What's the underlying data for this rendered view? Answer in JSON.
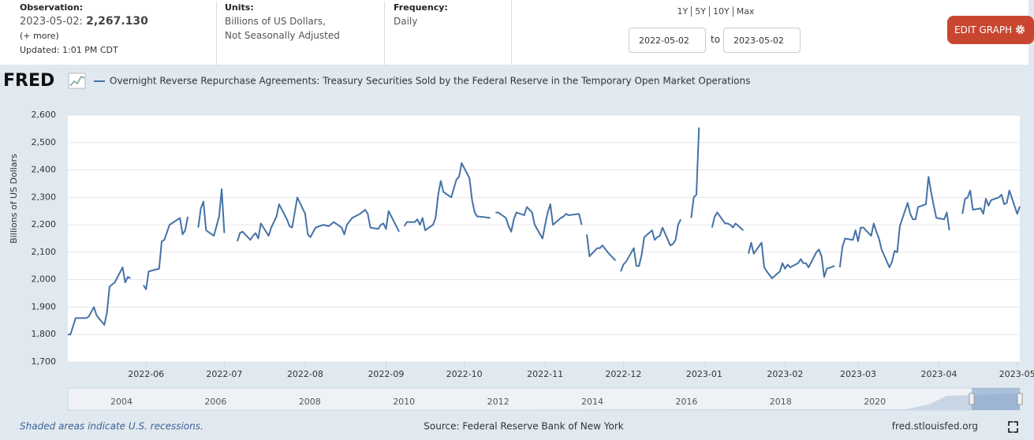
{
  "header": {
    "observation_label": "Observation:",
    "observation_date": "2023-05-02:",
    "observation_value": "2,267.130",
    "more": "(+ more)",
    "updated": "Updated: 1:01 PM CDT",
    "units_label": "Units:",
    "units": [
      "Billions of US Dollars,",
      "Not Seasonally Adjusted"
    ],
    "frequency_label": "Frequency:",
    "frequency": "Daily",
    "ranges": [
      "1Y",
      "5Y",
      "10Y",
      "Max"
    ],
    "range_start": "2022-05-02",
    "range_to": "to",
    "range_end": "2023-05-02",
    "edit_button": "EDIT GRAPH"
  },
  "logo": "FRED",
  "chart_data": {
    "type": "line",
    "ylabel": "Billions of US Dollars",
    "grid": true,
    "xlim": [
      "2022-05-02",
      "2023-05-02"
    ],
    "xticks": [
      {
        "value": "2022-06-01",
        "label": "2022-06"
      },
      {
        "value": "2022-07-01",
        "label": "2022-07"
      },
      {
        "value": "2022-08-01",
        "label": "2022-08"
      },
      {
        "value": "2022-09-01",
        "label": "2022-09"
      },
      {
        "value": "2022-10-01",
        "label": "2022-10"
      },
      {
        "value": "2022-11-01",
        "label": "2022-11"
      },
      {
        "value": "2022-12-01",
        "label": "2022-12"
      },
      {
        "value": "2023-01-01",
        "label": "2023-01"
      },
      {
        "value": "2023-02-01",
        "label": "2023-02"
      },
      {
        "value": "2023-03-01",
        "label": "2023-03"
      },
      {
        "value": "2023-04-01",
        "label": "2023-04"
      },
      {
        "value": "2023-05-01",
        "label": "2023-05"
      }
    ],
    "ylim": [
      1700,
      2600
    ],
    "yticks": [
      {
        "value": 1700,
        "label": "1,700"
      },
      {
        "value": 1800,
        "label": "1,800"
      },
      {
        "value": 1900,
        "label": "1,900"
      },
      {
        "value": 2000,
        "label": "2,000"
      },
      {
        "value": 2100,
        "label": "2,100"
      },
      {
        "value": 2200,
        "label": "2,200"
      },
      {
        "value": 2300,
        "label": "2,300"
      },
      {
        "value": 2400,
        "label": "2,400"
      },
      {
        "value": 2500,
        "label": "2,500"
      },
      {
        "value": 2600,
        "label": "2,600"
      }
    ],
    "x": [
      "2022-05-02",
      "2022-05-03",
      "2022-05-04",
      "2022-05-05",
      "2022-05-09",
      "2022-05-10",
      "2022-05-12",
      "2022-05-13",
      "2022-05-16",
      "2022-05-17",
      "2022-05-18",
      "2022-05-20",
      "2022-05-23",
      "2022-05-24",
      "2022-05-25",
      "2022-05-26",
      "2022-05-27",
      "2022-05-31",
      "2022-06-01",
      "2022-06-02",
      "2022-06-06",
      "2022-06-07",
      "2022-06-08",
      "2022-06-10",
      "2022-06-14",
      "2022-06-15",
      "2022-06-16",
      "2022-06-17",
      "2022-06-20",
      "2022-06-21",
      "2022-06-22",
      "2022-06-23",
      "2022-06-24",
      "2022-06-27",
      "2022-06-29",
      "2022-06-30",
      "2022-07-01",
      "2022-07-05",
      "2022-07-06",
      "2022-07-07",
      "2022-07-08",
      "2022-07-11",
      "2022-07-12",
      "2022-07-13",
      "2022-07-14",
      "2022-07-15",
      "2022-07-18",
      "2022-07-19",
      "2022-07-21",
      "2022-07-22",
      "2022-07-25",
      "2022-07-26",
      "2022-07-27",
      "2022-07-29",
      "2022-08-01",
      "2022-08-02",
      "2022-08-03",
      "2022-08-05",
      "2022-08-08",
      "2022-08-10",
      "2022-08-12",
      "2022-08-15",
      "2022-08-16",
      "2022-08-17",
      "2022-08-19",
      "2022-08-22",
      "2022-08-24",
      "2022-08-25",
      "2022-08-26",
      "2022-08-29",
      "2022-08-30",
      "2022-08-31",
      "2022-09-01",
      "2022-09-02",
      "2022-09-06",
      "2022-09-07",
      "2022-09-08",
      "2022-09-09",
      "2022-09-12",
      "2022-09-13",
      "2022-09-14",
      "2022-09-15",
      "2022-09-16",
      "2022-09-19",
      "2022-09-20",
      "2022-09-21",
      "2022-09-22",
      "2022-09-23",
      "2022-09-26",
      "2022-09-28",
      "2022-09-29",
      "2022-09-30",
      "2022-10-03",
      "2022-10-04",
      "2022-10-05",
      "2022-10-06",
      "2022-10-07",
      "2022-10-11",
      "2022-10-12",
      "2022-10-13",
      "2022-10-14",
      "2022-10-17",
      "2022-10-18",
      "2022-10-19",
      "2022-10-20",
      "2022-10-21",
      "2022-10-24",
      "2022-10-25",
      "2022-10-26",
      "2022-10-27",
      "2022-10-28",
      "2022-10-31",
      "2022-11-01",
      "2022-11-02",
      "2022-11-03",
      "2022-11-04",
      "2022-11-07",
      "2022-11-08",
      "2022-11-09",
      "2022-11-10",
      "2022-11-14",
      "2022-11-15",
      "2022-11-16",
      "2022-11-17",
      "2022-11-18",
      "2022-11-21",
      "2022-11-22",
      "2022-11-23",
      "2022-11-25",
      "2022-11-28",
      "2022-11-29",
      "2022-11-30",
      "2022-12-01",
      "2022-12-02",
      "2022-12-05",
      "2022-12-06",
      "2022-12-07",
      "2022-12-08",
      "2022-12-09",
      "2022-12-12",
      "2022-12-13",
      "2022-12-14",
      "2022-12-15",
      "2022-12-16",
      "2022-12-19",
      "2022-12-20",
      "2022-12-21",
      "2022-12-22",
      "2022-12-23",
      "2022-12-26",
      "2022-12-27",
      "2022-12-28",
      "2022-12-29",
      "2022-12-30",
      "2023-01-03",
      "2023-01-04",
      "2023-01-05",
      "2023-01-06",
      "2023-01-09",
      "2023-01-10",
      "2023-01-11",
      "2023-01-12",
      "2023-01-13",
      "2023-01-16",
      "2023-01-17",
      "2023-01-18",
      "2023-01-19",
      "2023-01-20",
      "2023-01-23",
      "2023-01-24",
      "2023-01-25",
      "2023-01-27",
      "2023-01-30",
      "2023-01-31",
      "2023-02-01",
      "2023-02-02",
      "2023-02-03",
      "2023-02-06",
      "2023-02-07",
      "2023-02-08",
      "2023-02-09",
      "2023-02-10",
      "2023-02-13",
      "2023-02-14",
      "2023-02-15",
      "2023-02-16",
      "2023-02-17",
      "2023-02-20",
      "2023-02-21",
      "2023-02-22",
      "2023-02-23",
      "2023-02-24",
      "2023-02-27",
      "2023-02-28",
      "2023-03-01",
      "2023-03-02",
      "2023-03-03",
      "2023-03-06",
      "2023-03-07",
      "2023-03-08",
      "2023-03-09",
      "2023-03-10",
      "2023-03-13",
      "2023-03-14",
      "2023-03-15",
      "2023-03-16",
      "2023-03-17",
      "2023-03-20",
      "2023-03-21",
      "2023-03-22",
      "2023-03-23",
      "2023-03-24",
      "2023-03-27",
      "2023-03-28",
      "2023-03-29",
      "2023-03-30",
      "2023-03-31",
      "2023-04-03",
      "2023-04-04",
      "2023-04-05",
      "2023-04-06",
      "2023-04-10",
      "2023-04-11",
      "2023-04-12",
      "2023-04-13",
      "2023-04-14",
      "2023-04-17",
      "2023-04-18",
      "2023-04-19",
      "2023-04-20",
      "2023-04-21",
      "2023-04-24",
      "2023-04-25",
      "2023-04-26",
      "2023-04-27",
      "2023-04-28",
      "2023-05-01",
      "2023-05-02"
    ],
    "series": [
      {
        "name": "Overnight Reverse Repurchase Agreements: Treasury Securities Sold by the Federal Reserve in the Temporary Open Market Operations",
        "color": "#4572a7",
        "values": [
          1800,
          1800,
          1830,
          1860,
          1860,
          1865,
          1900,
          1870,
          1835,
          1880,
          1975,
          1990,
          2045,
          1990,
          2010,
          2005,
          null,
          1980,
          1965,
          2030,
          2040,
          2140,
          2145,
          2200,
          2225,
          2165,
          2180,
          2230,
          null,
          2190,
          2260,
          2285,
          2180,
          2160,
          2230,
          2330,
          2170,
          null,
          2140,
          2170,
          2175,
          2145,
          2160,
          2170,
          2150,
          2205,
          2160,
          2190,
          2230,
          2275,
          2220,
          2195,
          2190,
          2300,
          2240,
          2165,
          2155,
          2190,
          2200,
          2195,
          2210,
          2190,
          2165,
          2200,
          2225,
          2240,
          2255,
          2240,
          2190,
          2185,
          2200,
          2205,
          2185,
          2250,
          2175,
          null,
          2195,
          2210,
          2210,
          2220,
          2200,
          2225,
          2180,
          2200,
          2225,
          2310,
          2360,
          2320,
          2300,
          2365,
          2375,
          2425,
          2370,
          2290,
          2245,
          2230,
          2230,
          2225,
          null,
          2245,
          2245,
          2225,
          2195,
          2175,
          2220,
          2245,
          2235,
          2265,
          2255,
          2245,
          2200,
          2150,
          2200,
          2245,
          2275,
          2200,
          2225,
          2230,
          2240,
          2235,
          2240,
          2200,
          null,
          2165,
          2085,
          2115,
          2115,
          2125,
          2100,
          2070,
          null,
          2030,
          2055,
          2065,
          2115,
          2050,
          2050,
          2090,
          2155,
          2180,
          2145,
          2155,
          2160,
          2190,
          2125,
          2130,
          2145,
          2200,
          2220,
          null,
          2225,
          2300,
          2310,
          2555,
          null,
          2190,
          2230,
          2245,
          2205,
          2205,
          2200,
          2190,
          2205,
          2180,
          null,
          2095,
          2135,
          2095,
          2135,
          2045,
          2030,
          2005,
          2030,
          2060,
          2040,
          2055,
          2045,
          2060,
          2075,
          2060,
          2060,
          2045,
          2100,
          2110,
          2085,
          2010,
          2040,
          2050,
          null,
          2045,
          2120,
          2150,
          2145,
          2180,
          2140,
          2190,
          2190,
          2160,
          2205,
          2175,
          2150,
          2110,
          2045,
          2065,
          2105,
          2100,
          2195,
          2280,
          2240,
          2220,
          2220,
          2265,
          2275,
          2375,
          2320,
          2270,
          2225,
          2220,
          2245,
          2180,
          null,
          2240,
          2295,
          2300,
          2325,
          2255,
          2260,
          2240,
          2295,
          2270,
          2290,
          2300,
          2310,
          2275,
          2280,
          2325,
          2240,
          2267.13
        ]
      }
    ]
  },
  "navigator": {
    "years": [
      2004,
      2006,
      2008,
      2010,
      2012,
      2014,
      2016,
      2018,
      2020
    ]
  },
  "footer": {
    "recessions": "Shaded areas indicate U.S. recessions.",
    "source": "Source: Federal Reserve Bank of New York",
    "site": "fred.stlouisfed.org"
  }
}
